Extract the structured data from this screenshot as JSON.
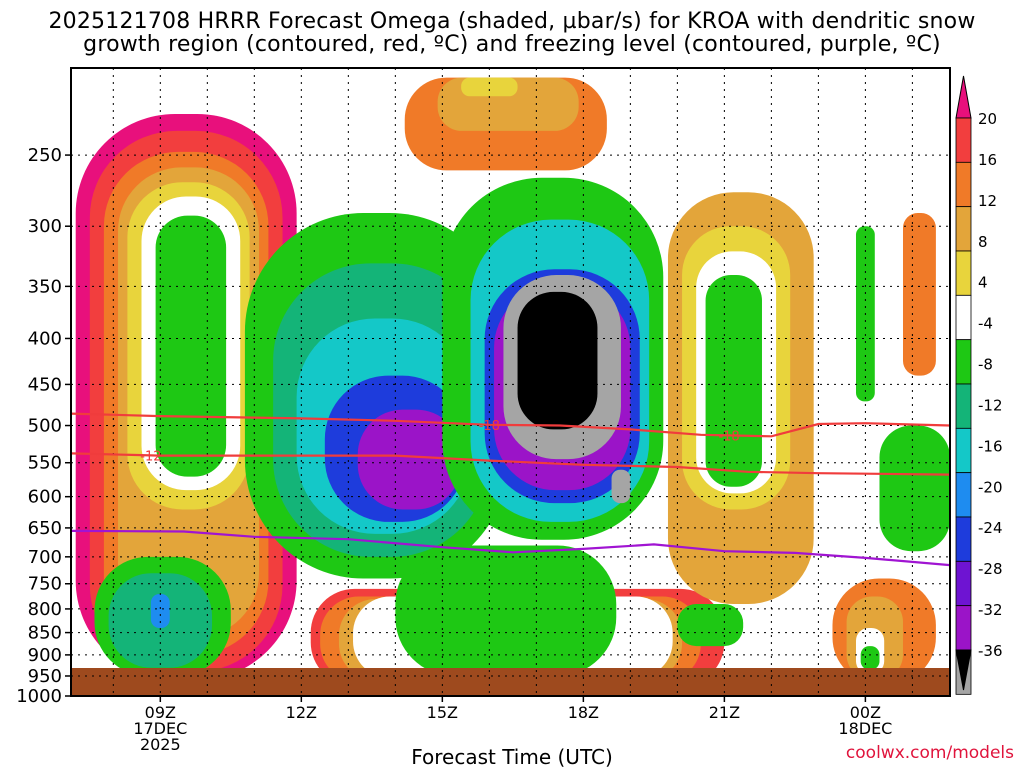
{
  "title_line1": "2025121708 HRRR Forecast Omega (shaded, µbar/s) for KROA with dendritic snow",
  "title_line2": "growth region (contoured, red, ºC) and freezing level (contoured, purple, ºC)",
  "credit": "coolwx.com/models",
  "chart_data": {
    "type": "heatmap",
    "xlabel": "Forecast Time (UTC)",
    "ylabel": "",
    "y_axis": {
      "scale": "log",
      "inverted": true,
      "range": [
        1000,
        200
      ],
      "ticks": [
        250,
        300,
        350,
        400,
        450,
        500,
        550,
        600,
        650,
        700,
        750,
        800,
        850,
        900,
        950,
        1000
      ]
    },
    "x_axis": {
      "range_hours": [
        7.1,
        25.8
      ],
      "ticks": [
        {
          "hour": 9,
          "lines": [
            "09Z",
            "17DEC",
            "2025"
          ]
        },
        {
          "hour": 12,
          "lines": [
            "12Z"
          ]
        },
        {
          "hour": 15,
          "lines": [
            "15Z"
          ]
        },
        {
          "hour": 18,
          "lines": [
            "18Z"
          ]
        },
        {
          "hour": 21,
          "lines": [
            "21Z"
          ]
        },
        {
          "hour": 24,
          "lines": [
            "00Z",
            "18DEC"
          ]
        }
      ]
    },
    "colorbar": {
      "labels": [
        "20",
        "16",
        "12",
        "8",
        "4",
        "-4",
        "-8",
        "-12",
        "-16",
        "-20",
        "-24",
        "-28",
        "-32",
        "-36"
      ],
      "colors": [
        "#e8107c",
        "#f23e3e",
        "#f07a28",
        "#e3a53a",
        "#e8d43c",
        "#ffffff",
        "#1ec814",
        "#14b478",
        "#14c8c8",
        "#1e8cf0",
        "#1e3cdc",
        "#6e14d2",
        "#9b14c8",
        "#a5a5a5",
        "#000000"
      ]
    },
    "omega_cells": [
      {
        "hours": [
          7.2,
          11.9
        ],
        "pressure": [
          225,
          960
        ],
        "level": 6
      },
      {
        "hours": [
          7.5,
          11.6
        ],
        "pressure": [
          235,
          940
        ],
        "level": 5
      },
      {
        "hours": [
          7.8,
          11.3
        ],
        "pressure": [
          248,
          900
        ],
        "level": 4
      },
      {
        "hours": [
          8.1,
          11.1
        ],
        "pressure": [
          258,
          860
        ],
        "level": 3
      },
      {
        "hours": [
          8.3,
          10.9
        ],
        "pressure": [
          268,
          620
        ],
        "level": 2
      },
      {
        "hours": [
          8.6,
          10.7
        ],
        "pressure": [
          278,
          590
        ],
        "level": 1
      },
      {
        "hours": [
          8.9,
          10.4
        ],
        "pressure": [
          292,
          570
        ],
        "level": 0
      },
      {
        "hours": [
          14.2,
          18.5
        ],
        "pressure": [
          205,
          260
        ],
        "level": 4
      },
      {
        "hours": [
          14.9,
          17.9
        ],
        "pressure": [
          205,
          235
        ],
        "level": 3
      },
      {
        "hours": [
          15.4,
          16.6
        ],
        "pressure": [
          205,
          215
        ],
        "level": 2
      },
      {
        "hours": [
          12.2,
          21.0
        ],
        "pressure": [
          760,
          975
        ],
        "level": 5
      },
      {
        "hours": [
          12.4,
          20.5
        ],
        "pressure": [
          775,
          965
        ],
        "level": 4
      },
      {
        "hours": [
          12.8,
          20.1
        ],
        "pressure": [
          780,
          960
        ],
        "level": 3
      },
      {
        "hours": [
          13.1,
          19.9
        ],
        "pressure": [
          775,
          955
        ],
        "level": 1
      },
      {
        "hours": [
          14.0,
          18.7
        ],
        "pressure": [
          680,
          950
        ],
        "level": 0
      },
      {
        "hours": [
          7.6,
          10.5
        ],
        "pressure": [
          700,
          950
        ],
        "level": -1
      },
      {
        "hours": [
          7.9,
          10.1
        ],
        "pressure": [
          730,
          930
        ],
        "level": -2
      },
      {
        "hours": [
          8.8,
          9.2
        ],
        "pressure": [
          770,
          840
        ],
        "level": -4
      },
      {
        "hours": [
          10.8,
          16.4
        ],
        "pressure": [
          290,
          740
        ],
        "level": -1
      },
      {
        "hours": [
          11.4,
          16.0
        ],
        "pressure": [
          330,
          700
        ],
        "level": -2
      },
      {
        "hours": [
          11.9,
          15.6
        ],
        "pressure": [
          380,
          660
        ],
        "level": -3
      },
      {
        "hours": [
          12.5,
          15.5
        ],
        "pressure": [
          440,
          640
        ],
        "level": -5
      },
      {
        "hours": [
          13.2,
          15.4
        ],
        "pressure": [
          480,
          620
        ],
        "level": -7
      },
      {
        "hours": [
          15.0,
          19.7
        ],
        "pressure": [
          265,
          670
        ],
        "level": -1
      },
      {
        "hours": [
          15.6,
          19.4
        ],
        "pressure": [
          295,
          640
        ],
        "level": -3
      },
      {
        "hours": [
          15.9,
          19.2
        ],
        "pressure": [
          335,
          610
        ],
        "level": -5
      },
      {
        "hours": [
          16.1,
          19.0
        ],
        "pressure": [
          350,
          590
        ],
        "level": -7
      },
      {
        "hours": [
          16.3,
          18.8
        ],
        "pressure": [
          340,
          545
        ],
        "level": -8
      },
      {
        "hours": [
          16.6,
          18.3
        ],
        "pressure": [
          355,
          505
        ],
        "level": -9
      },
      {
        "hours": [
          18.6,
          19.0
        ],
        "pressure": [
          560,
          610
        ],
        "level": -8
      },
      {
        "hours": [
          19.8,
          22.9
        ],
        "pressure": [
          275,
          790
        ],
        "level": 3
      },
      {
        "hours": [
          20.1,
          22.4
        ],
        "pressure": [
          300,
          620
        ],
        "level": 2
      },
      {
        "hours": [
          20.4,
          22.1
        ],
        "pressure": [
          320,
          595
        ],
        "level": 1
      },
      {
        "hours": [
          20.6,
          21.8
        ],
        "pressure": [
          340,
          585
        ],
        "level": 0
      },
      {
        "hours": [
          20.0,
          21.4
        ],
        "pressure": [
          790,
          880
        ],
        "level": -1
      },
      {
        "hours": [
          24.3,
          25.8
        ],
        "pressure": [
          500,
          690
        ],
        "level": -1
      },
      {
        "hours": [
          23.8,
          24.2
        ],
        "pressure": [
          300,
          470
        ],
        "level": -1
      },
      {
        "hours": [
          24.8,
          25.5
        ],
        "pressure": [
          290,
          440
        ],
        "level": 4
      },
      {
        "hours": [
          23.3,
          25.5
        ],
        "pressure": [
          740,
          970
        ],
        "level": 4
      },
      {
        "hours": [
          23.6,
          24.8
        ],
        "pressure": [
          775,
          960
        ],
        "level": 3
      },
      {
        "hours": [
          23.8,
          24.4
        ],
        "pressure": [
          840,
          945
        ],
        "level": 1
      },
      {
        "hours": [
          23.9,
          24.3
        ],
        "pressure": [
          880,
          935
        ],
        "level": 0
      }
    ],
    "contours": [
      {
        "name": "-18",
        "color": "#f03c3c",
        "label_at_hours": [
          16.0,
          21.1
        ],
        "points": [
          [
            7.1,
            485
          ],
          [
            9.0,
            488
          ],
          [
            12.0,
            491
          ],
          [
            14.0,
            494
          ],
          [
            16.0,
            499
          ],
          [
            17.5,
            500
          ],
          [
            19.0,
            505
          ],
          [
            20.5,
            512
          ],
          [
            22.0,
            514
          ],
          [
            23.0,
            498
          ],
          [
            24.0,
            497
          ],
          [
            25.8,
            500
          ]
        ]
      },
      {
        "name": "-12",
        "color": "#f03c3c",
        "label_at_hours": [
          8.8
        ],
        "points": [
          [
            7.1,
            537
          ],
          [
            9.0,
            540
          ],
          [
            12.0,
            540
          ],
          [
            14.0,
            540
          ],
          [
            16.0,
            547
          ],
          [
            18.0,
            553
          ],
          [
            20.0,
            556
          ],
          [
            21.5,
            563
          ],
          [
            23.0,
            565
          ],
          [
            25.8,
            567
          ]
        ]
      },
      {
        "name": "0",
        "color": "#a014d2",
        "label_at_hours": [],
        "points": [
          [
            7.1,
            655
          ],
          [
            9.5,
            656
          ],
          [
            11.0,
            665
          ],
          [
            13.0,
            669
          ],
          [
            15.0,
            683
          ],
          [
            16.5,
            692
          ],
          [
            18.0,
            686
          ],
          [
            19.5,
            678
          ],
          [
            21.0,
            690
          ],
          [
            22.5,
            693
          ],
          [
            24.0,
            702
          ],
          [
            25.8,
            715
          ]
        ]
      }
    ]
  }
}
